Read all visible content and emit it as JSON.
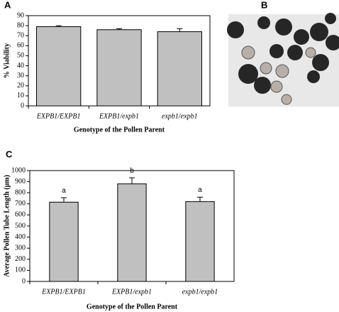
{
  "chart_data": [
    {
      "type": "bar",
      "panel_label": "A",
      "y_label": "% Viability",
      "x_label": "Genotype of the Pollen Parent",
      "categories": [
        "EXPB1/EXPB1",
        "EXPB1/expb1",
        "expb1/expb1"
      ],
      "values": [
        79,
        76,
        74
      ],
      "errors": [
        1,
        1,
        3
      ],
      "color": "#c0c0c0",
      "ylim": [
        0,
        90
      ],
      "yticks": [
        0,
        10,
        20,
        30,
        40,
        50,
        60,
        70,
        80,
        90
      ]
    },
    {
      "type": "bar",
      "panel_label": "C",
      "y_label": "Average Pollen Tube Length (μm)",
      "x_label": "Genotype of the Pollen Parent",
      "categories": [
        "EXPB1/EXPB1",
        "EXPB1/expb1",
        "expb1/expb1"
      ],
      "values": [
        715,
        880,
        720
      ],
      "errors": [
        40,
        55,
        40
      ],
      "annotations": [
        "a",
        "b",
        "a"
      ],
      "color": "#c0c0c0",
      "ylim": [
        0,
        1000
      ],
      "yticks": [
        0,
        100,
        200,
        300,
        400,
        500,
        600,
        700,
        800,
        900,
        1000
      ]
    }
  ],
  "image_panel": {
    "label": "B"
  }
}
